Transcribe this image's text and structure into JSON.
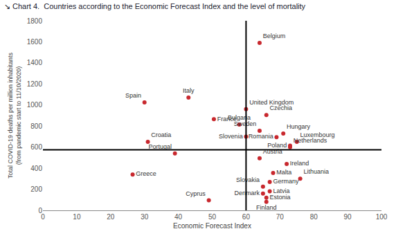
{
  "chart_data": {
    "type": "scatter",
    "title": "↘ Chart 4.  Countries according to the Economic Forecast Index and the level of mortality",
    "x_label": "Economic Forecast Index",
    "y_label": "Total COVID-19 deaths per million inhabitants\n(from pandemic start to 11/10/2020)",
    "names": [
      "Belgium",
      "Spain",
      "Italy",
      "United Kingdom",
      "Czechia",
      "France",
      "Bulgaria",
      "Sweden",
      "Hungary",
      "Slovenia",
      "Romania",
      "Luxembourg",
      "Croatia",
      "Poland",
      "Netherlands",
      "Portugal",
      "Austria",
      "Ireland",
      "Malta",
      "Greece",
      "Lithuania",
      "Germany",
      "Slovakia",
      "Latvia",
      "Denmark",
      "Estonia",
      "Finland",
      "Cyprus"
    ],
    "x": [
      64,
      30,
      43,
      60,
      66,
      50.5,
      58,
      64,
      71,
      60,
      69,
      75,
      31,
      73,
      73,
      39,
      64,
      72,
      68,
      26.5,
      76,
      67,
      65,
      67,
      65,
      66,
      66,
      49
    ],
    "values": [
      1590,
      1025,
      1070,
      960,
      905,
      865,
      815,
      755,
      730,
      700,
      695,
      650,
      650,
      615,
      600,
      540,
      495,
      440,
      355,
      340,
      300,
      270,
      225,
      180,
      160,
      120,
      80,
      95
    ],
    "color": "#c8282e",
    "marker": "circle",
    "reference_lines": {
      "x": 60,
      "y": 575
    },
    "xlim": [
      0,
      100
    ],
    "xticks": [
      0,
      10,
      20,
      30,
      40,
      50,
      60,
      70,
      80,
      90,
      100
    ],
    "ylim": [
      0,
      1800
    ],
    "yticks": [
      0,
      200,
      400,
      600,
      800,
      1000,
      1200,
      1400,
      1600,
      1800
    ],
    "grid": false
  }
}
